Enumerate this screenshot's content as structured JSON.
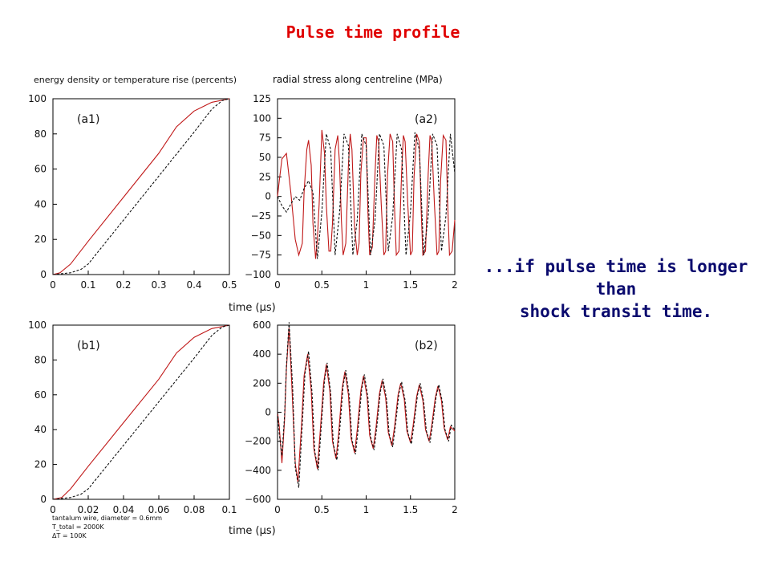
{
  "slide": {
    "title": "Pulse time profile",
    "annotation": [
      "...if pulse time is longer",
      "than",
      "shock transit time."
    ]
  },
  "figure": {
    "left_header": "energy density or temperature rise (percents)",
    "right_header": "radial stress along centreline (MPa)",
    "xlabel_top": "time (μs)",
    "xlabel_bottom": "time (μs)",
    "footnote": [
      "tantalum wire, diameter = 0.6mm",
      "T_total = 2000K",
      "ΔT =   100K"
    ]
  },
  "colors": {
    "solid": "#c01818",
    "dashed": "#111111",
    "title": "#e00000",
    "annotation": "#0a0a6e"
  },
  "chart_data": [
    {
      "id": "a1",
      "type": "line",
      "panel_label": "(a1)",
      "xlim": [
        0,
        0.5
      ],
      "ylim": [
        0,
        100
      ],
      "xticks": [
        0,
        0.1,
        0.2,
        0.3,
        0.4,
        0.5
      ],
      "xticklabels": [
        "0",
        "0.1",
        "0.2",
        "0.3",
        "0.4",
        "0.5"
      ],
      "yticks": [
        0,
        20,
        40,
        60,
        80,
        100
      ],
      "yticklabels": [
        "0",
        "20",
        "40",
        "60",
        "80",
        "100"
      ],
      "series": [
        {
          "style": "solid",
          "x": [
            0,
            0.02,
            0.05,
            0.1,
            0.2,
            0.3,
            0.35,
            0.4,
            0.45,
            0.5
          ],
          "y": [
            0,
            1,
            6,
            19,
            44,
            69,
            84,
            93,
            98,
            100
          ]
        },
        {
          "style": "dashed",
          "x": [
            0,
            0.05,
            0.08,
            0.1,
            0.2,
            0.3,
            0.4,
            0.45,
            0.48,
            0.5
          ],
          "y": [
            0,
            1,
            3,
            6,
            31,
            56,
            81,
            94,
            99,
            100
          ]
        }
      ]
    },
    {
      "id": "a2",
      "type": "line",
      "panel_label": "(a2)",
      "xlim": [
        0,
        2
      ],
      "ylim": [
        -100,
        125
      ],
      "xticks": [
        0,
        0.5,
        1,
        1.5,
        2
      ],
      "xticklabels": [
        "0",
        "0.5",
        "1",
        "1.5",
        "2"
      ],
      "yticks": [
        -100,
        -75,
        -50,
        -25,
        0,
        25,
        50,
        75,
        100,
        125
      ],
      "yticklabels": [
        "−100",
        "−75",
        "−50",
        "−25",
        "0",
        "25",
        "50",
        "75",
        "100",
        "125"
      ],
      "series": [
        {
          "style": "solid",
          "x": [
            0,
            0.02,
            0.05,
            0.1,
            0.15,
            0.2,
            0.24,
            0.28,
            0.3,
            0.33,
            0.35,
            0.38,
            0.4,
            0.43,
            0.45,
            0.47,
            0.5,
            0.53,
            0.55,
            0.58,
            0.6,
            0.62,
            0.65,
            0.68,
            0.7,
            0.72,
            0.74,
            0.77,
            0.8,
            0.82,
            0.84,
            0.87,
            0.9,
            0.92,
            0.94,
            0.97,
            1.0,
            1.02,
            1.04,
            1.07,
            1.1,
            1.12,
            1.14,
            1.17,
            1.2,
            1.22,
            1.24,
            1.27,
            1.3,
            1.32,
            1.34,
            1.37,
            1.4,
            1.42,
            1.44,
            1.47,
            1.5,
            1.52,
            1.54,
            1.57,
            1.6,
            1.62,
            1.64,
            1.67,
            1.7,
            1.72,
            1.74,
            1.77,
            1.8,
            1.82,
            1.84,
            1.87,
            1.9,
            1.92,
            1.94,
            1.97,
            2.0
          ],
          "y": [
            0,
            20,
            48,
            55,
            5,
            -55,
            -75,
            -60,
            5,
            60,
            72,
            40,
            -35,
            -80,
            -55,
            -10,
            85,
            55,
            -10,
            -70,
            -70,
            -35,
            60,
            78,
            40,
            -30,
            -75,
            -60,
            40,
            80,
            60,
            -40,
            -75,
            -60,
            30,
            75,
            75,
            -20,
            -75,
            -65,
            30,
            78,
            70,
            -10,
            -75,
            -70,
            25,
            80,
            70,
            -15,
            -75,
            -70,
            30,
            78,
            70,
            -10,
            -75,
            -70,
            25,
            80,
            70,
            -15,
            -75,
            -70,
            30,
            78,
            70,
            -10,
            -75,
            -70,
            20,
            78,
            72,
            -10,
            -75,
            -70,
            -30
          ]
        },
        {
          "style": "dashed",
          "x": [
            0,
            0.05,
            0.1,
            0.15,
            0.2,
            0.25,
            0.3,
            0.35,
            0.4,
            0.45,
            0.5,
            0.55,
            0.6,
            0.65,
            0.7,
            0.75,
            0.8,
            0.85,
            0.9,
            0.95,
            1.0,
            1.05,
            1.1,
            1.15,
            1.2,
            1.25,
            1.3,
            1.35,
            1.4,
            1.45,
            1.5,
            1.55,
            1.6,
            1.65,
            1.7,
            1.75,
            1.8,
            1.85,
            1.9,
            1.95,
            2.0
          ],
          "y": [
            0,
            -12,
            -20,
            -10,
            0,
            -5,
            10,
            20,
            5,
            -80,
            -20,
            80,
            60,
            -75,
            -20,
            80,
            65,
            -75,
            -30,
            80,
            65,
            -75,
            -30,
            80,
            65,
            -70,
            -25,
            80,
            60,
            -75,
            -20,
            82,
            60,
            -75,
            -25,
            80,
            65,
            -70,
            -25,
            80,
            30
          ]
        }
      ]
    },
    {
      "id": "b1",
      "type": "line",
      "panel_label": "(b1)",
      "xlim": [
        0,
        0.1
      ],
      "ylim": [
        0,
        100
      ],
      "xticks": [
        0,
        0.02,
        0.04,
        0.06,
        0.08,
        0.1
      ],
      "xticklabels": [
        "0",
        "0.02",
        "0.04",
        "0.06",
        "0.08",
        "0.1"
      ],
      "yticks": [
        0,
        20,
        40,
        60,
        80,
        100
      ],
      "yticklabels": [
        "0",
        "20",
        "40",
        "60",
        "80",
        "100"
      ],
      "series": [
        {
          "style": "solid",
          "x": [
            0,
            0.005,
            0.01,
            0.02,
            0.04,
            0.06,
            0.07,
            0.08,
            0.09,
            0.1
          ],
          "y": [
            0,
            1,
            6,
            19,
            44,
            69,
            84,
            93,
            98,
            100
          ]
        },
        {
          "style": "dashed",
          "x": [
            0,
            0.01,
            0.016,
            0.02,
            0.04,
            0.06,
            0.08,
            0.09,
            0.096,
            0.1
          ],
          "y": [
            0,
            1,
            3,
            6,
            31,
            56,
            81,
            94,
            99,
            100
          ]
        }
      ]
    },
    {
      "id": "b2",
      "type": "line",
      "panel_label": "(b2)",
      "xlim": [
        0,
        2
      ],
      "ylim": [
        -600,
        600
      ],
      "xticks": [
        0,
        0.5,
        1,
        1.5,
        2
      ],
      "xticklabels": [
        "0",
        "0.5",
        "1",
        "1.5",
        "2"
      ],
      "yticks": [
        -600,
        -400,
        -200,
        0,
        200,
        400,
        600
      ],
      "yticklabels": [
        "−600",
        "−400",
        "−200",
        "0",
        "200",
        "400",
        "600"
      ],
      "series": [
        {
          "style": "solid",
          "x": [
            0,
            0.02,
            0.05,
            0.08,
            0.1,
            0.13,
            0.16,
            0.2,
            0.23,
            0.27,
            0.3,
            0.34,
            0.38,
            0.41,
            0.45,
            0.48,
            0.52,
            0.55,
            0.59,
            0.62,
            0.66,
            0.69,
            0.73,
            0.76,
            0.8,
            0.83,
            0.87,
            0.9,
            0.94,
            0.97,
            1.01,
            1.04,
            1.08,
            1.11,
            1.15,
            1.18,
            1.22,
            1.25,
            1.29,
            1.32,
            1.36,
            1.39,
            1.43,
            1.46,
            1.5,
            1.53,
            1.57,
            1.6,
            1.64,
            1.67,
            1.71,
            1.74,
            1.78,
            1.81,
            1.85,
            1.88,
            1.92,
            1.95,
            2.0
          ],
          "y": [
            0,
            -100,
            -350,
            -50,
            300,
            580,
            200,
            -350,
            -480,
            -100,
            250,
            400,
            150,
            -250,
            -390,
            -150,
            200,
            330,
            150,
            -200,
            -320,
            -150,
            170,
            280,
            120,
            -180,
            -280,
            -120,
            150,
            250,
            110,
            -160,
            -250,
            -110,
            130,
            220,
            100,
            -140,
            -230,
            -100,
            120,
            200,
            90,
            -130,
            -210,
            -90,
            110,
            190,
            80,
            -120,
            -200,
            -90,
            100,
            180,
            80,
            -110,
            -190,
            -100,
            -130
          ]
        },
        {
          "style": "dashed",
          "x": [
            0,
            0.02,
            0.05,
            0.08,
            0.1,
            0.13,
            0.17,
            0.2,
            0.24,
            0.28,
            0.31,
            0.35,
            0.39,
            0.42,
            0.46,
            0.49,
            0.53,
            0.56,
            0.6,
            0.63,
            0.67,
            0.7,
            0.74,
            0.77,
            0.81,
            0.84,
            0.88,
            0.91,
            0.95,
            0.98,
            1.02,
            1.05,
            1.09,
            1.12,
            1.16,
            1.19,
            1.23,
            1.26,
            1.3,
            1.33,
            1.37,
            1.4,
            1.44,
            1.47,
            1.51,
            1.54,
            1.58,
            1.61,
            1.65,
            1.68,
            1.72,
            1.75,
            1.79,
            1.82,
            1.86,
            1.89,
            1.93,
            1.96,
            2.0
          ],
          "y": [
            0,
            -150,
            -300,
            -20,
            320,
            620,
            180,
            -380,
            -520,
            -80,
            270,
            420,
            130,
            -270,
            -400,
            -130,
            220,
            340,
            130,
            -220,
            -330,
            -130,
            180,
            290,
            110,
            -190,
            -290,
            -110,
            160,
            260,
            100,
            -170,
            -260,
            -100,
            140,
            230,
            90,
            -150,
            -240,
            -90,
            130,
            210,
            80,
            -140,
            -220,
            -80,
            120,
            200,
            70,
            -130,
            -210,
            -80,
            110,
            190,
            70,
            -120,
            -200,
            -90,
            -120
          ]
        }
      ]
    }
  ]
}
